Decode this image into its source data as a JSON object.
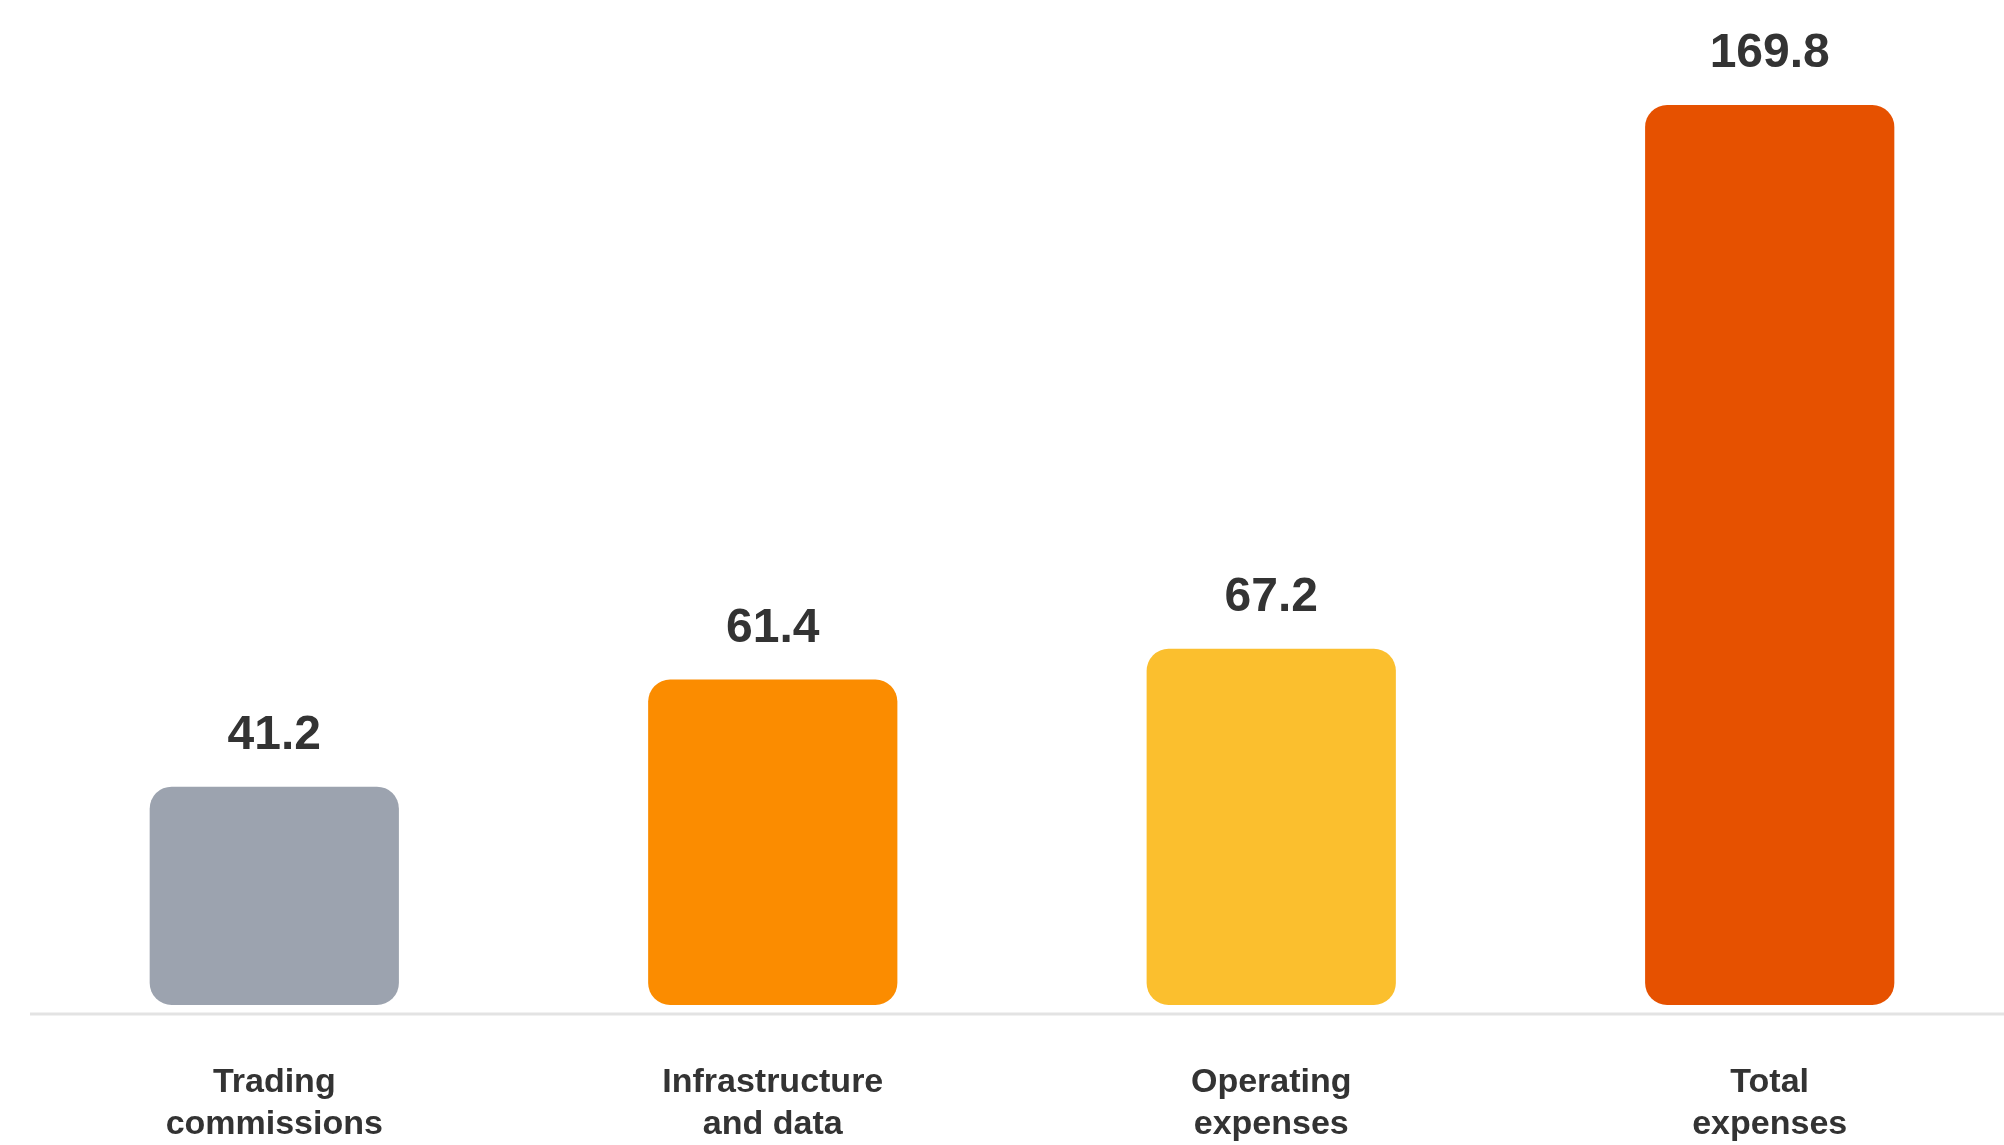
{
  "chart_data": {
    "type": "bar",
    "categories": [
      "Trading commissions",
      "Infrastructure and data",
      "Operating expenses",
      "Total expenses"
    ],
    "values": [
      41.2,
      61.4,
      67.2,
      169.8
    ],
    "colors": [
      "#9ca3af",
      "#fb8c00",
      "#fbbf2e",
      "#e65100"
    ],
    "data_labels": true
  }
}
